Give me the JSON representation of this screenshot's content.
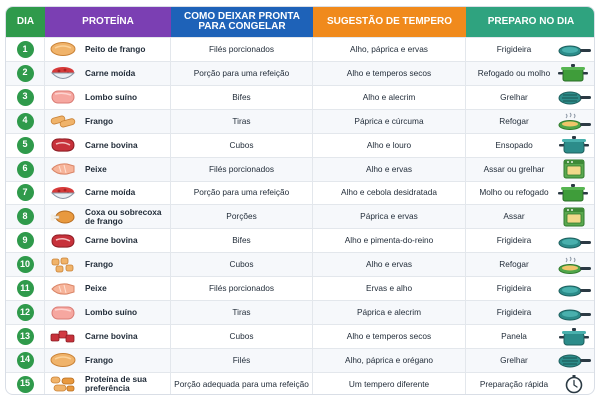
{
  "colors": {
    "day_header": "#2f9a4b",
    "protein_header": "#7b3fb3",
    "freeze_header": "#1e62b8",
    "seasoning_header": "#f08a1c",
    "prep_header": "#2fa37f",
    "badge": "#2f9a4b"
  },
  "header": {
    "day": "DIA",
    "protein": "PROTEÍNA",
    "freeze": "COMO DEIXAR PRONTA PARA CONGELAR",
    "seasoning": "SUGESTÃO DE TEMPERO",
    "prep": "PREPARO NO DIA"
  },
  "rows": [
    {
      "day": "1",
      "protein": "Peito de frango",
      "freeze": "Filés porcionados",
      "seasoning": "Alho, páprica e ervas",
      "prep": "Frigideira",
      "food_icon": "chicken-breast-icon",
      "cook_icon": "frying-pan-icon"
    },
    {
      "day": "2",
      "protein": "Carne moída",
      "freeze": "Porção para uma refeição",
      "seasoning": "Alho e temperos secos",
      "prep": "Refogado ou molho",
      "food_icon": "ground-meat-bowl-icon",
      "cook_icon": "pot-icon"
    },
    {
      "day": "3",
      "protein": "Lombo suíno",
      "freeze": "Bifes",
      "seasoning": "Alho e alecrim",
      "prep": "Grelhar",
      "food_icon": "pork-loin-icon",
      "cook_icon": "grill-pan-icon"
    },
    {
      "day": "4",
      "protein": "Frango",
      "freeze": "Tiras",
      "seasoning": "Páprica e cúrcuma",
      "prep": "Refogar",
      "food_icon": "chicken-strips-icon",
      "cook_icon": "steaming-pan-icon"
    },
    {
      "day": "5",
      "protein": "Carne bovina",
      "freeze": "Cubos",
      "seasoning": "Alho e louro",
      "prep": "Ensopado",
      "food_icon": "steak-icon",
      "cook_icon": "stew-pot-icon"
    },
    {
      "day": "6",
      "protein": "Peixe",
      "freeze": "Filés porcionados",
      "seasoning": "Alho e ervas",
      "prep": "Assar ou grelhar",
      "food_icon": "fish-fillet-icon",
      "cook_icon": "oven-icon"
    },
    {
      "day": "7",
      "protein": "Carne moída",
      "freeze": "Porção para uma refeição",
      "seasoning": "Alho e cebola desidratada",
      "prep": "Molho ou refogado",
      "food_icon": "ground-meat-bowl-icon",
      "cook_icon": "pot-icon"
    },
    {
      "day": "8",
      "protein": "Coxa ou sobrecoxa de frango",
      "freeze": "Porções",
      "seasoning": "Páprica e ervas",
      "prep": "Assar",
      "food_icon": "drumstick-icon",
      "cook_icon": "oven-icon"
    },
    {
      "day": "9",
      "protein": "Carne bovina",
      "freeze": "Bifes",
      "seasoning": "Alho e pimenta-do-reino",
      "prep": "Frigideira",
      "food_icon": "steak-icon",
      "cook_icon": "frying-pan-icon"
    },
    {
      "day": "10",
      "protein": "Frango",
      "freeze": "Cubos",
      "seasoning": "Alho e ervas",
      "prep": "Refogar",
      "food_icon": "chicken-cubes-icon",
      "cook_icon": "steaming-pan-icon"
    },
    {
      "day": "11",
      "protein": "Peixe",
      "freeze": "Filés porcionados",
      "seasoning": "Ervas e alho",
      "prep": "Frigideira",
      "food_icon": "fish-fillet-icon",
      "cook_icon": "frying-pan-icon"
    },
    {
      "day": "12",
      "protein": "Lombo suíno",
      "freeze": "Tiras",
      "seasoning": "Páprica e alecrim",
      "prep": "Frigideira",
      "food_icon": "pork-loin-icon",
      "cook_icon": "frying-pan-icon"
    },
    {
      "day": "13",
      "protein": "Carne bovina",
      "freeze": "Cubos",
      "seasoning": "Alho e temperos secos",
      "prep": "Panela",
      "food_icon": "beef-cubes-icon",
      "cook_icon": "stew-pot-icon"
    },
    {
      "day": "14",
      "protein": "Frango",
      "freeze": "Filés",
      "seasoning": "Alho, páprica e orégano",
      "prep": "Grelhar",
      "food_icon": "chicken-breast-icon",
      "cook_icon": "grill-pan-icon"
    },
    {
      "day": "15",
      "protein": "Proteína de sua preferência",
      "freeze": "Porção adequada para uma refeição",
      "seasoning": "Um tempero diferente",
      "prep": "Preparação rápida",
      "food_icon": "mixed-protein-icon",
      "cook_icon": "stopwatch-icon"
    }
  ]
}
